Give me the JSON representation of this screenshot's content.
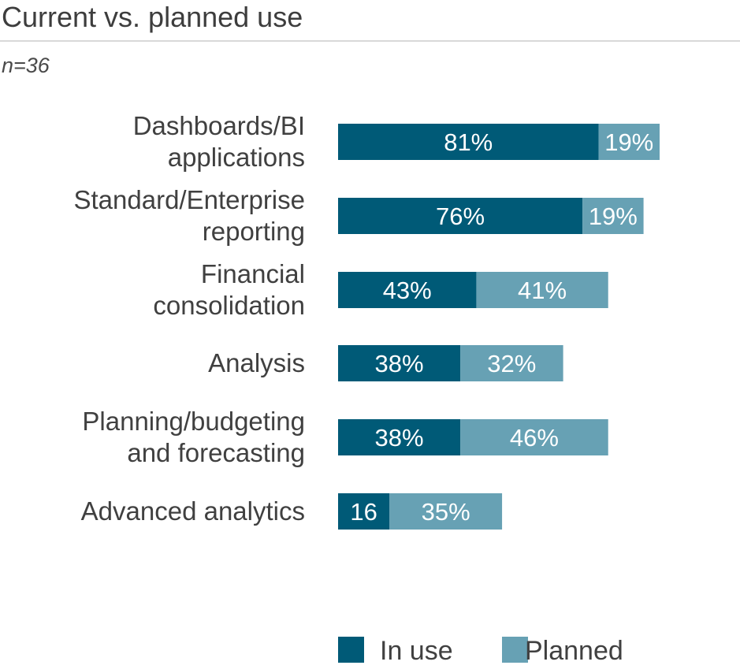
{
  "title": "Current vs. planned use",
  "subtitle": "n=36",
  "colors": {
    "in_use": "#005a77",
    "planned": "#67a1b4"
  },
  "chart_data": {
    "type": "bar",
    "orientation": "horizontal",
    "stacked": true,
    "categories": [
      [
        "Dashboards/BI",
        "applications"
      ],
      [
        "Standard/Enterprise",
        "reporting"
      ],
      [
        "Financial",
        "consolidation"
      ],
      [
        "Analysis"
      ],
      [
        "Planning/budgeting",
        "and forecasting"
      ],
      [
        "Advanced analytics"
      ]
    ],
    "series": [
      {
        "name": "In use",
        "values": [
          81,
          76,
          43,
          38,
          38,
          16
        ],
        "labels": [
          "81%",
          "76%",
          "43%",
          "38%",
          "38%",
          "16"
        ]
      },
      {
        "name": "Planned",
        "values": [
          19,
          19,
          41,
          32,
          46,
          35
        ],
        "labels": [
          "19%",
          "19%",
          "41%",
          "32%",
          "46%",
          "35%"
        ]
      }
    ],
    "xlim": [
      0,
      100
    ],
    "grid": false,
    "legend_position": "bottom"
  }
}
